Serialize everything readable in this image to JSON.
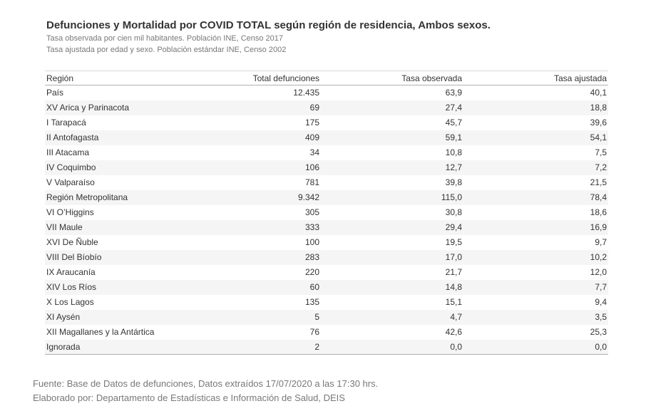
{
  "title": "Defunciones y Mortalidad por COVID TOTAL según región de residencia, Ambos sexos.",
  "subtitle1": "Tasa observada por cien mil habitantes. Población INE, Censo 2017",
  "subtitle2": "Tasa ajustada por edad y sexo. Población estándar INE, Censo 2002",
  "table": {
    "columns": [
      "Región",
      "Total defunciones",
      "Tasa observada",
      "Tasa ajustada"
    ],
    "rows": [
      [
        "País",
        "12.435",
        "63,9",
        "40,1"
      ],
      [
        "XV Arica y Parinacota",
        "69",
        "27,4",
        "18,8"
      ],
      [
        "I Tarapacá",
        "175",
        "45,7",
        "39,6"
      ],
      [
        "II Antofagasta",
        "409",
        "59,1",
        "54,1"
      ],
      [
        "III Atacama",
        "34",
        "10,8",
        "7,5"
      ],
      [
        "IV Coquimbo",
        "106",
        "12,7",
        "7,2"
      ],
      [
        "V Valparaíso",
        "781",
        "39,8",
        "21,5"
      ],
      [
        "Región Metropolitana",
        "9.342",
        "115,0",
        "78,4"
      ],
      [
        "VI O’Higgins",
        "305",
        "30,8",
        "18,6"
      ],
      [
        "VII Maule",
        "333",
        "29,4",
        "16,9"
      ],
      [
        "XVI De Ñuble",
        "100",
        "19,5",
        "9,7"
      ],
      [
        "VIII Del Bíobío",
        "283",
        "17,0",
        "10,2"
      ],
      [
        "IX Araucanía",
        "220",
        "21,7",
        "12,0"
      ],
      [
        "XIV Los Ríos",
        "60",
        "14,8",
        "7,7"
      ],
      [
        "X Los Lagos",
        "135",
        "15,1",
        "9,4"
      ],
      [
        "XI Aysén",
        "5",
        "4,7",
        "3,5"
      ],
      [
        "XII Magallanes y la Antártica",
        "76",
        "42,6",
        "25,3"
      ],
      [
        "Ignorada",
        "2",
        "0,0",
        "0,0"
      ]
    ]
  },
  "footer": {
    "line1": "Fuente: Base de Datos de defunciones, Datos extraídos 17/07/2020 a las 17:30 hrs.",
    "line2": "Elaborado por: Departamento de Estadísticas e Información de Salud, DEIS"
  },
  "colors": {
    "text": "#333333",
    "muted_text": "#787878",
    "row_stripe": "#f5f5f5",
    "table_border": "#b0b0b0",
    "table_top_border": "#d8d8d8",
    "background": "#ffffff"
  },
  "chart_data": {
    "type": "table",
    "title": "Defunciones y Mortalidad por COVID TOTAL según región de residencia, Ambos sexos.",
    "notes": [
      "Tasa observada por cien mil habitantes. Población INE, Censo 2017",
      "Tasa ajustada por edad y sexo. Población estándar INE, Censo 2002"
    ],
    "categories": [
      "País",
      "XV Arica y Parinacota",
      "I Tarapacá",
      "II Antofagasta",
      "III Atacama",
      "IV Coquimbo",
      "V Valparaíso",
      "Región Metropolitana",
      "VI O’Higgins",
      "VII Maule",
      "XVI De Ñuble",
      "VIII Del Bíobío",
      "IX Araucanía",
      "XIV Los Ríos",
      "X Los Lagos",
      "XI Aysén",
      "XII Magallanes y la Antártica",
      "Ignorada"
    ],
    "series": [
      {
        "name": "Total defunciones",
        "values": [
          12435,
          69,
          175,
          409,
          34,
          106,
          781,
          9342,
          305,
          333,
          100,
          283,
          220,
          60,
          135,
          5,
          76,
          2
        ]
      },
      {
        "name": "Tasa observada",
        "values": [
          63.9,
          27.4,
          45.7,
          59.1,
          10.8,
          12.7,
          39.8,
          115.0,
          30.8,
          29.4,
          19.5,
          17.0,
          21.7,
          14.8,
          15.1,
          4.7,
          42.6,
          0.0
        ]
      },
      {
        "name": "Tasa ajustada",
        "values": [
          40.1,
          18.8,
          39.6,
          54.1,
          7.5,
          7.2,
          21.5,
          78.4,
          18.6,
          16.9,
          9.7,
          10.2,
          12.0,
          7.7,
          9.4,
          3.5,
          25.3,
          0.0
        ]
      }
    ]
  }
}
